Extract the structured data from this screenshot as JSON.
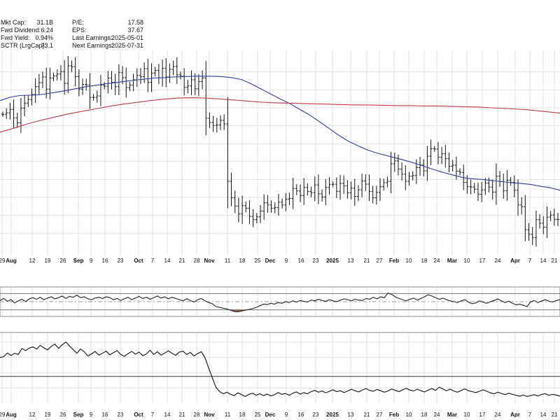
{
  "colors": {
    "ma_short": "#2b3d9a",
    "ma_long": "#c0394b",
    "bars": "#111111",
    "oversold_fill": "#8e5a55",
    "grid": "#e2e2e2"
  },
  "info": {
    "left": [
      {
        "label": "Mkt Cap:",
        "value": "31.1B"
      },
      {
        "label": "Fwd Dividend:",
        "value": "6.24"
      },
      {
        "label": "Fwd Yield:",
        "value": "0.94%"
      },
      {
        "label": "SCTR (LrgCap):",
        "value": "73.1"
      }
    ],
    "right": [
      {
        "label": "P/E:",
        "value": "17.58"
      },
      {
        "label": "EPS:",
        "value": "37.67"
      },
      {
        "label": "Last Earnings:",
        "value": "2025-05-01"
      },
      {
        "label": "Next Earnings:",
        "value": "2025-07-31"
      }
    ]
  },
  "chart_data": [
    {
      "type": "line",
      "panel": "price",
      "style": "ohlc-bars",
      "x_ticks": [
        {
          "label": "29",
          "bold": false
        },
        {
          "label": "Aug",
          "bold": true
        },
        {
          "label": "12",
          "bold": false
        },
        {
          "label": "19",
          "bold": false
        },
        {
          "label": "26",
          "bold": false
        },
        {
          "label": "Sep",
          "bold": true
        },
        {
          "label": "9",
          "bold": false
        },
        {
          "label": "16",
          "bold": false
        },
        {
          "label": "23",
          "bold": false
        },
        {
          "label": "Oct",
          "bold": true
        },
        {
          "label": "7",
          "bold": false
        },
        {
          "label": "14",
          "bold": false
        },
        {
          "label": "21",
          "bold": false
        },
        {
          "label": "28",
          "bold": false
        },
        {
          "label": "Nov",
          "bold": true
        },
        {
          "label": "11",
          "bold": false
        },
        {
          "label": "18",
          "bold": false
        },
        {
          "label": "25",
          "bold": false
        },
        {
          "label": "Dec",
          "bold": true
        },
        {
          "label": "9",
          "bold": false
        },
        {
          "label": "16",
          "bold": false
        },
        {
          "label": "23",
          "bold": false
        },
        {
          "label": "2025",
          "bold": true
        },
        {
          "label": "13",
          "bold": false
        },
        {
          "label": "21",
          "bold": false
        },
        {
          "label": "27",
          "bold": false
        },
        {
          "label": "Feb",
          "bold": true
        },
        {
          "label": "10",
          "bold": false
        },
        {
          "label": "18",
          "bold": false
        },
        {
          "label": "24",
          "bold": false
        },
        {
          "label": "Mar",
          "bold": true
        },
        {
          "label": "10",
          "bold": false
        },
        {
          "label": "17",
          "bold": false
        },
        {
          "label": "24",
          "bold": false
        },
        {
          "label": "Apr",
          "bold": true
        },
        {
          "label": "7",
          "bold": false
        },
        {
          "label": "14",
          "bold": false
        },
        {
          "label": "21",
          "bold": false
        }
      ],
      "close": [
        123.2,
        123.6,
        124.5,
        122.2,
        120.8,
        124.9,
        126.3,
        127.3,
        128.7,
        130.9,
        132.0,
        133.6,
        130.2,
        133.3,
        133.9,
        134.4,
        135.1,
        131.8,
        136.7,
        136.4,
        133.7,
        130.2,
        131.5,
        131.4,
        127.9,
        127.9,
        128.3,
        131.3,
        131.0,
        133.3,
        132.1,
        130.9,
        134.8,
        133.4,
        130.6,
        131.3,
        132.8,
        134.0,
        133.7,
        135.9,
        132.1,
        134.7,
        135.4,
        133.4,
        136.0,
        133.6,
        135.7,
        136.5,
        134.2,
        133.8,
        130.7,
        131.1,
        132.8,
        130.3,
        132.3,
        133.3,
        122.1,
        120.9,
        120.1,
        120.2,
        121.5,
        120.5,
        104.5,
        99.9,
        97.6,
        95.4,
        97.7,
        97.0,
        94.7,
        93.8,
        94.6,
        96.2,
        98.5,
        97.9,
        97.0,
        97.2,
        98.7,
        97.9,
        99.5,
        99.7,
        102.5,
        101.8,
        100.5,
        102.8,
        101.7,
        101.3,
        103.5,
        101.0,
        100.1,
        102.8,
        103.6,
        103.7,
        101.7,
        103.9,
        103.2,
        101.3,
        102.6,
        100.3,
        102.1,
        104.6,
        103.7,
        101.7,
        99.9,
        101.4,
        103.0,
        104.1,
        104.5,
        109.4,
        110.2,
        107.9,
        106.5,
        104.5,
        105.9,
        106.1,
        108.3,
        109.1,
        107.4,
        111.5,
        113.6,
        113.5,
        111.2,
        112.2,
        110.8,
        108.7,
        109.0,
        107.3,
        107.0,
        104.2,
        103.0,
        102.9,
        102.3,
        100.9,
        102.1,
        104.0,
        102.9,
        101.5,
        105.9,
        104.4,
        101.9,
        104.8,
        104.2,
        102.0,
        97.9,
        97.4,
        91.0,
        89.7,
        88.8,
        93.8,
        92.8,
        91.7,
        94.5,
        95.1,
        93.9,
        93.8
      ],
      "sma_short": [
        127.0,
        127.9,
        128.4,
        128.5,
        128.6,
        129.0,
        129.4,
        129.9,
        130.4,
        130.9,
        131.3,
        131.7,
        132.0,
        132.4,
        132.7,
        133.0,
        133.3,
        133.4,
        133.6,
        133.7,
        133.8,
        133.8,
        133.8,
        133.7,
        133.4,
        132.9,
        131.7,
        130.3,
        128.9,
        127.5,
        126.2,
        124.6,
        123.1,
        121.3,
        119.4,
        117.5,
        115.8,
        114.5,
        113.3,
        112.4,
        111.7,
        111.0,
        110.3,
        109.5,
        108.6,
        107.7,
        106.9,
        106.2,
        105.5,
        105.2,
        105.0,
        104.7,
        104.4,
        104.1,
        103.9,
        103.6,
        103.1,
        102.7,
        102.0
      ],
      "sma_long": [
        118.2,
        119.3,
        120.5,
        121.5,
        122.4,
        123.3,
        124.0,
        124.7,
        125.4,
        126.0,
        126.5,
        127.0,
        127.4,
        127.7,
        127.8,
        127.7,
        127.5,
        127.2,
        126.9,
        126.6,
        126.4,
        126.3,
        126.2,
        126.1,
        126.0,
        125.9,
        125.8,
        125.8,
        125.7,
        125.6,
        125.6,
        125.5,
        125.5,
        125.4,
        125.3,
        125.2,
        125.0,
        124.8,
        124.6,
        124.3,
        123.9,
        123.5
      ],
      "ylim": [
        84,
        141
      ]
    },
    {
      "type": "line",
      "panel": "oscillator",
      "values": [
        53,
        58,
        51,
        55,
        47,
        52,
        56,
        50,
        57,
        60,
        56,
        61,
        55,
        59,
        62,
        57,
        60,
        64,
        58,
        63,
        61,
        66,
        60,
        62,
        57,
        55,
        59,
        61,
        58,
        62,
        60,
        55,
        58,
        53,
        57,
        61,
        55,
        59,
        63,
        58,
        61,
        56,
        60,
        64,
        59,
        62,
        57,
        61,
        58,
        55,
        52,
        57,
        53,
        49,
        55,
        58,
        52,
        48,
        45,
        38,
        36,
        34,
        32,
        29,
        26,
        25,
        27,
        29,
        31,
        33,
        36,
        40,
        44,
        43,
        46,
        44,
        48,
        46,
        50,
        48,
        52,
        49,
        53,
        51,
        49,
        54,
        52,
        56,
        53,
        51,
        55,
        52,
        50,
        54,
        57,
        55,
        52,
        56,
        54,
        53,
        58,
        56,
        61,
        57,
        62,
        60,
        71,
        68,
        62,
        58,
        55,
        52,
        56,
        59,
        54,
        58,
        62,
        67,
        64,
        60,
        56,
        59,
        55,
        52,
        50,
        48,
        52,
        55,
        49,
        45,
        47,
        52,
        49,
        46,
        50,
        53,
        57,
        52,
        48,
        51,
        46,
        42,
        44,
        41,
        38,
        50,
        53,
        48,
        52,
        55,
        51,
        49,
        53,
        55
      ],
      "ylim": [
        0,
        100
      ],
      "levels": [
        70,
        50,
        30
      ]
    },
    {
      "type": "line",
      "panel": "relative",
      "values": [
        45.0,
        45.3,
        46.5,
        45.7,
        46.4,
        46.0,
        48.0,
        47.3,
        48.1,
        48.5,
        47.8,
        49.0,
        48.2,
        47.5,
        48.7,
        49.4,
        48.0,
        49.2,
        50.1,
        48.8,
        47.6,
        46.4,
        47.8,
        46.9,
        45.5,
        46.2,
        47.0,
        45.8,
        46.4,
        47.1,
        45.9,
        46.6,
        47.3,
        46.0,
        45.4,
        46.3,
        47.0,
        46.1,
        46.8,
        45.6,
        46.2,
        47.4,
        46.0,
        46.9,
        45.8,
        46.5,
        47.2,
        46.4,
        45.7,
        46.8,
        47.1,
        46.0,
        46.7,
        45.5,
        46.3,
        46.9,
        45.0,
        41.6,
        38.4,
        35.2,
        33.8,
        33.1,
        33.6,
        32.9,
        32.5,
        33.4,
        32.8,
        32.2,
        32.9,
        33.3,
        32.6,
        33.1,
        32.5,
        33.0,
        32.4,
        32.8,
        33.5,
        32.9,
        33.2,
        32.6,
        33.3,
        33.7,
        33.0,
        33.5,
        33.1,
        33.8,
        34.2,
        33.6,
        34.0,
        33.4,
        33.9,
        34.4,
        33.8,
        34.1,
        33.5,
        34.0,
        34.6,
        34.1,
        33.7,
        34.3,
        34.8,
        34.2,
        33.9,
        34.5,
        34.1,
        33.6,
        34.0,
        34.7,
        34.2,
        33.8,
        34.4,
        34.9,
        34.3,
        34.0,
        34.6,
        34.1,
        33.7,
        34.3,
        34.8,
        34.2,
        35.3,
        34.7,
        34.1,
        34.6,
        34.0,
        33.6,
        34.2,
        34.7,
        34.1,
        33.8,
        33.5,
        33.9,
        34.4,
        33.9,
        33.4,
        33.1,
        33.6,
        33.2,
        32.8,
        33.3,
        32.9,
        32.6,
        32.3,
        32.7,
        32.2,
        32.5,
        32.8,
        32.4,
        32.9,
        33.1,
        32.6,
        32.9,
        32.7,
        32.3
      ],
      "ylim": [
        30,
        53
      ]
    }
  ]
}
